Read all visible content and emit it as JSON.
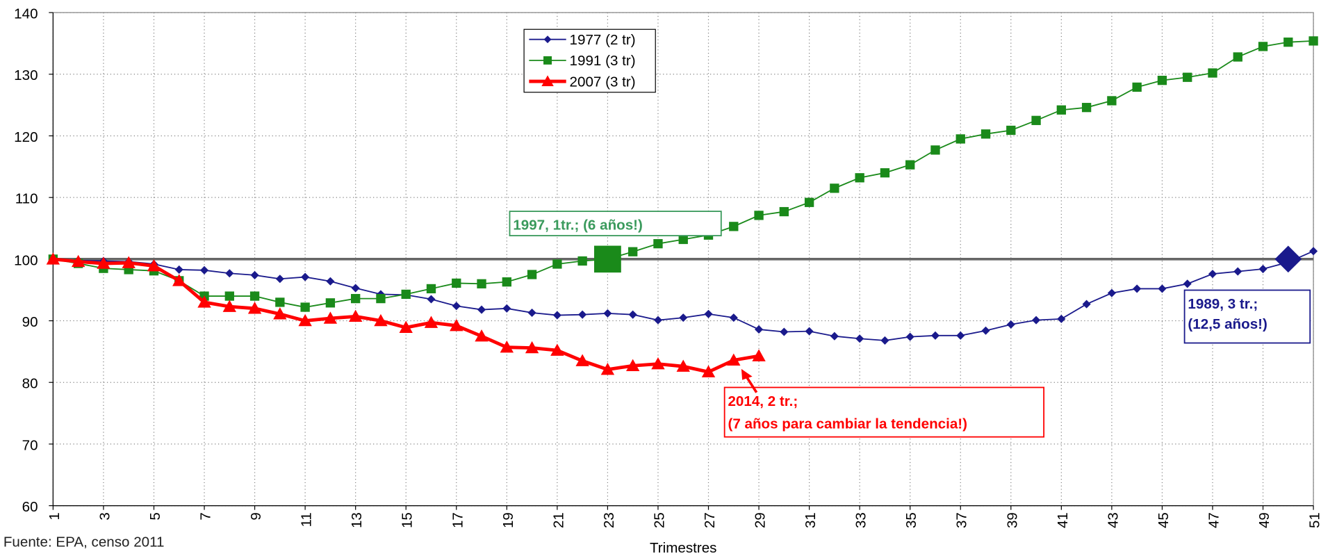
{
  "chart_data": {
    "type": "line",
    "x_label": "Trimestres",
    "source": "Fuente: EPA, censo 2011",
    "x": [
      1,
      2,
      3,
      4,
      5,
      6,
      7,
      8,
      9,
      10,
      11,
      12,
      13,
      14,
      15,
      16,
      17,
      18,
      19,
      20,
      21,
      22,
      23,
      24,
      25,
      26,
      27,
      28,
      29,
      30,
      31,
      32,
      33,
      34,
      35,
      36,
      37,
      38,
      39,
      40,
      41,
      42,
      43,
      44,
      45,
      46,
      47,
      48,
      49,
      50,
      51
    ],
    "series": [
      {
        "name": "1977 (2 tr)",
        "color": "#1a1a8c",
        "marker": "diamond",
        "width": 1.5,
        "values": [
          100,
          99.8,
          99.7,
          99.6,
          99.2,
          98.3,
          98.2,
          97.7,
          97.4,
          96.8,
          97.1,
          96.4,
          95.3,
          94.3,
          94.2,
          93.5,
          92.4,
          91.8,
          92.0,
          91.3,
          90.9,
          91.0,
          91.2,
          91.0,
          90.1,
          90.5,
          91.1,
          90.5,
          88.6,
          88.2,
          88.3,
          87.5,
          87.1,
          86.8,
          87.4,
          87.6,
          87.6,
          88.4,
          89.4,
          90.1,
          90.3,
          92.7,
          94.5,
          95.2,
          95.2,
          96.0,
          97.6,
          98.0,
          98.4,
          99.5,
          101.3
        ]
      },
      {
        "name": "1991 (3 tr)",
        "color": "#1a8a1a",
        "marker": "square",
        "width": 1.5,
        "values": [
          100,
          99.3,
          98.5,
          98.3,
          98.1,
          96.5,
          94.0,
          94.0,
          94.0,
          93.0,
          92.2,
          92.9,
          93.6,
          93.6,
          94.3,
          95.2,
          96.1,
          96.0,
          96.3,
          97.5,
          99.2,
          99.7,
          100.0,
          101.2,
          102.5,
          103.2,
          103.9,
          105.3,
          107.1,
          107.7,
          109.2,
          111.5,
          113.2,
          114.0,
          115.3,
          117.7,
          119.5,
          120.3,
          120.9,
          122.5,
          124.2,
          124.6,
          125.7,
          127.9,
          129.0,
          129.5,
          130.2,
          132.8,
          134.5,
          135.2,
          135.4
        ]
      },
      {
        "name": "2007 (3 tr)",
        "color": "#ff0000",
        "marker": "triangle",
        "width": 4,
        "values": [
          100,
          99.6,
          99.3,
          99.4,
          98.9,
          96.5,
          93.0,
          92.3,
          92.0,
          91.1,
          90.0,
          90.4,
          90.7,
          90.0,
          88.9,
          89.7,
          89.2,
          87.5,
          85.7,
          85.6,
          85.2,
          83.5,
          82.1,
          82.7,
          83.0,
          82.6,
          81.7,
          83.6,
          84.3,
          null,
          null,
          null,
          null,
          null,
          null,
          null,
          null,
          null,
          null,
          null,
          null,
          null,
          null,
          null,
          null,
          null,
          null,
          null,
          null,
          null,
          null
        ]
      }
    ],
    "xlim": [
      1,
      51
    ],
    "xticks": [
      1,
      3,
      5,
      7,
      9,
      11,
      13,
      15,
      17,
      19,
      21,
      23,
      25,
      27,
      29,
      31,
      33,
      35,
      37,
      39,
      41,
      43,
      45,
      47,
      49,
      51
    ],
    "ylim": [
      60,
      140
    ],
    "yticks": [
      60,
      70,
      80,
      90,
      100,
      110,
      120,
      130,
      140
    ],
    "grid": true,
    "reference_line": 100,
    "legend": "top-center",
    "highlights": [
      {
        "x": 23,
        "y": 100,
        "color": "#1a8a1a",
        "marker": "square"
      },
      {
        "x": 50,
        "y": 100,
        "color": "#1a1a8c",
        "marker": "diamond"
      }
    ],
    "annotations": [
      {
        "lines": [
          "1997, 1tr.; (6 años!)"
        ],
        "color": "#3a9a5c"
      },
      {
        "lines": [
          "1989, 3 tr.;",
          "(12,5 años!)"
        ],
        "color": "#1a1a8c"
      },
      {
        "lines": [
          "2014, 2 tr.;",
          "(7 años para cambiar la tendencia!)"
        ],
        "color": "#ff0000"
      }
    ]
  }
}
